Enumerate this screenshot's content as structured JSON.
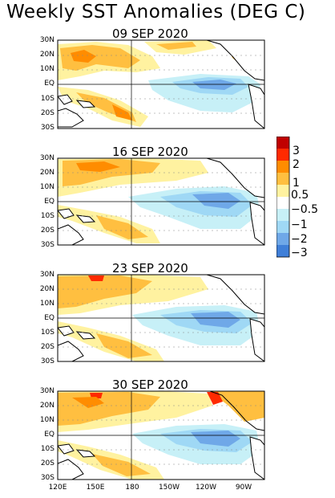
{
  "title": "Weekly SST Anomalies (DEG C)",
  "panels": [
    {
      "date": "09 SEP 2020"
    },
    {
      "date": "16 SEP 2020"
    },
    {
      "date": "23 SEP 2020"
    },
    {
      "date": "30 SEP 2020"
    }
  ],
  "lat_labels": [
    "30N",
    "20N",
    "10N",
    "EQ",
    "10S",
    "20S",
    "30S"
  ],
  "lon_labels": [
    "120E",
    "150E",
    "180",
    "150W",
    "120W",
    "90W"
  ],
  "colorbar": {
    "labels": [
      "3",
      "2",
      "1",
      "0.5",
      "−0.5",
      "−1",
      "−2",
      "−3"
    ],
    "colors": [
      "#c00000",
      "#ff2a00",
      "#ff8c00",
      "#ffbf40",
      "#fff2a0",
      "#ffffff",
      "#c7f0f7",
      "#9fd8f5",
      "#6fa8e8",
      "#3f7fd8"
    ]
  },
  "map_colors": {
    "warm1": "#fff2a0",
    "warm2": "#ffbf40",
    "warm3": "#ff8c00",
    "warm4": "#ff2a00",
    "cool1": "#c7f0f7",
    "cool2": "#9fd8f5",
    "cool3": "#6fa8e8",
    "land": "#ffffff"
  }
}
